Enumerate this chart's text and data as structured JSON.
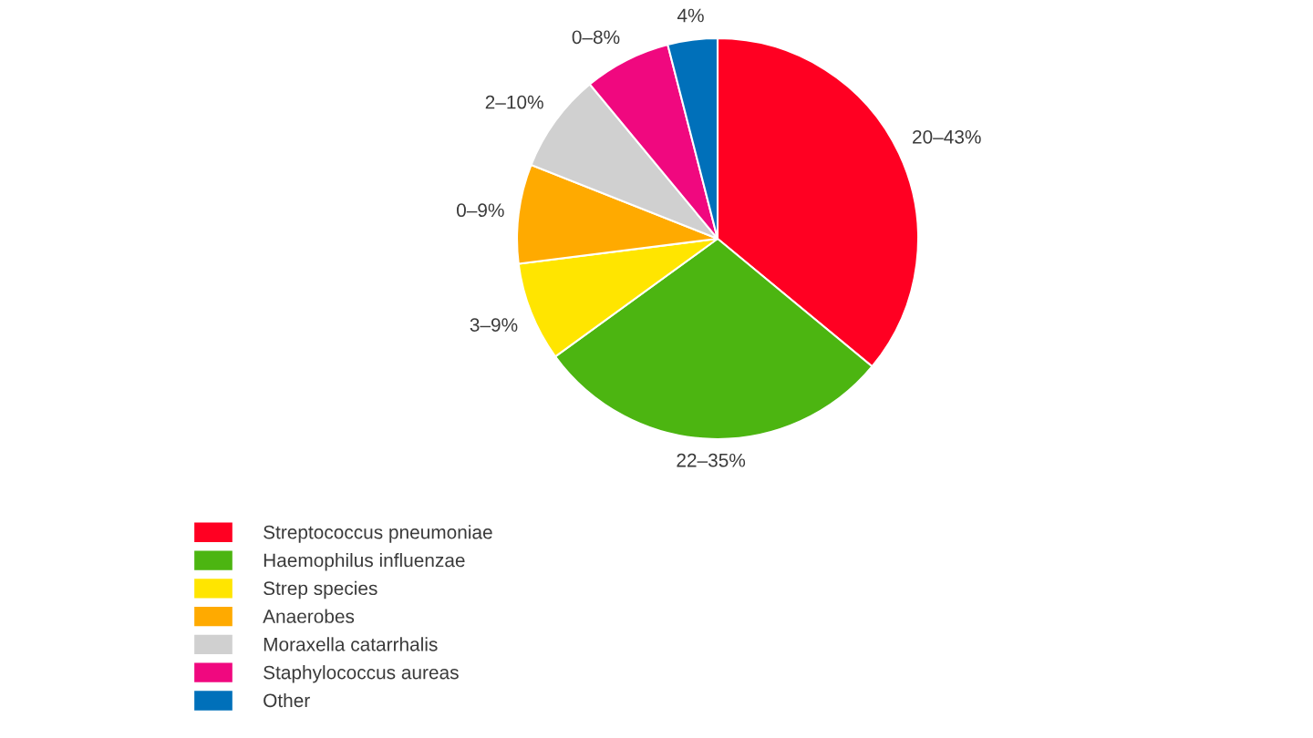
{
  "chart_data": {
    "type": "pie",
    "categories": [
      "Streptococcus pneumoniae",
      "Haemophilus influenzae",
      "Strep species",
      "Anaerobes",
      "Moraxella catarrhalis",
      "Staphylococcus aureas",
      "Other"
    ],
    "values": [
      36,
      29,
      8,
      8,
      8,
      7,
      4
    ],
    "colors": [
      "#ff0022",
      "#4cb511",
      "#ffe500",
      "#ffaa00",
      "#d0d0d0",
      "#f0087f",
      "#0070ba"
    ],
    "annotations": [
      {
        "text": "20–43%",
        "x": "Streptococcus pneumoniae"
      },
      {
        "text": "22–35%",
        "x": "Haemophilus influenzae"
      },
      {
        "text": "3–9%",
        "x": "Strep species"
      },
      {
        "text": "0–9%",
        "x": "Anaerobes"
      },
      {
        "text": "2–10%",
        "x": "Moraxella catarrhalis"
      },
      {
        "text": "0–8%",
        "x": "Staphylococcus aureas"
      },
      {
        "text": "4%",
        "x": "Other"
      }
    ],
    "legend": "bottom left"
  }
}
